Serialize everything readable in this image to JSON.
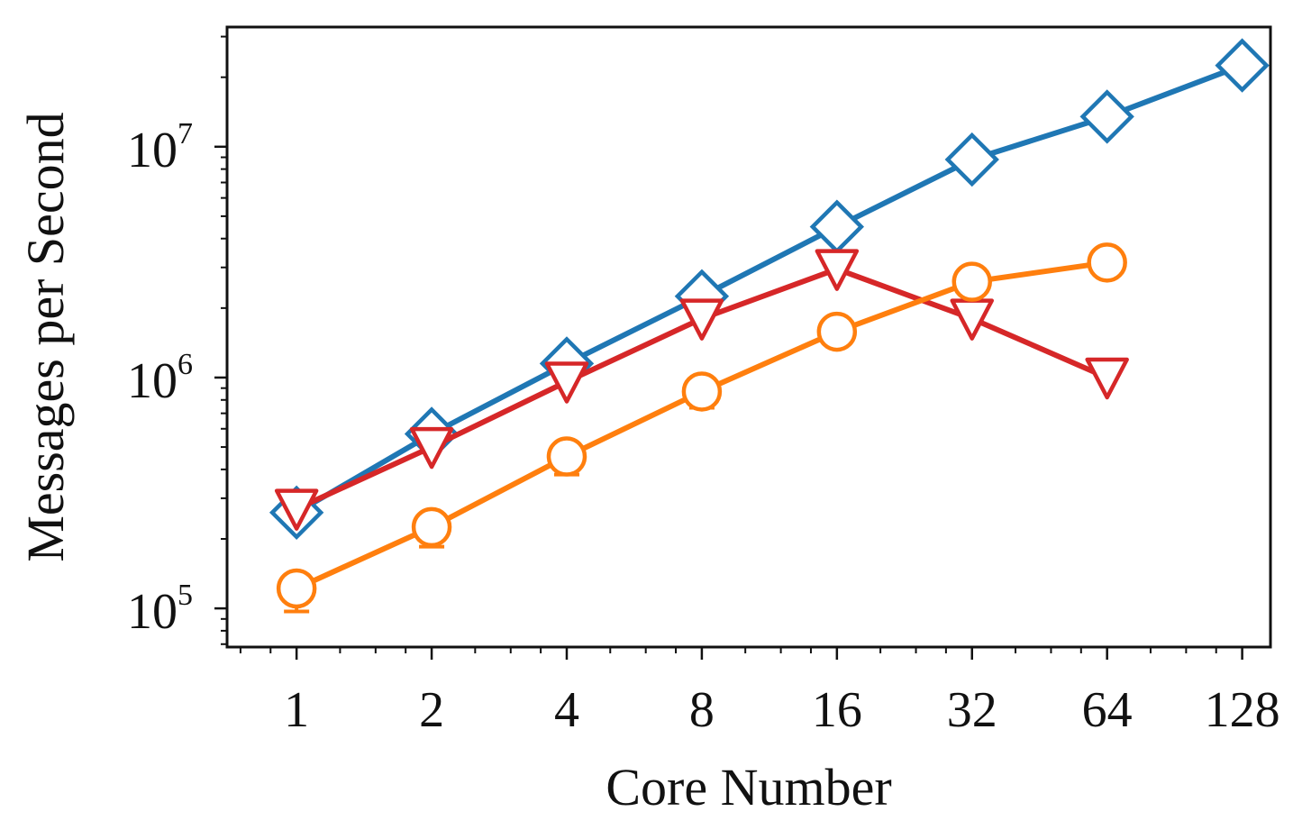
{
  "chart_data": {
    "type": "line",
    "xscale": "log2",
    "yscale": "log10",
    "xlabel": "Core Number",
    "ylabel": "Messages per Second",
    "x": [
      1,
      2,
      4,
      8,
      16,
      32,
      64,
      128
    ],
    "xticklabels": [
      "1",
      "2",
      "4",
      "8",
      "16",
      "32",
      "64",
      "128"
    ],
    "yticks": [
      {
        "value": 100000,
        "base": "10",
        "exp": "5"
      },
      {
        "value": 1000000,
        "base": "10",
        "exp": "6"
      },
      {
        "value": 10000000,
        "base": "10",
        "exp": "7"
      }
    ],
    "ylim": [
      68000,
      33000000
    ],
    "xlim": [
      0.7,
      148
    ],
    "series": [
      {
        "name": "series-diamond",
        "color": "#1f77b4",
        "marker": "diamond",
        "x": [
          1,
          2,
          4,
          8,
          16,
          32,
          64,
          128
        ],
        "values": [
          260000,
          570000,
          1150000,
          2250000,
          4500000,
          8800000,
          13500000,
          22500000
        ],
        "err_low": [
          0,
          0,
          0,
          0,
          0,
          0,
          0,
          0
        ],
        "err_high": [
          0,
          0,
          0,
          0,
          0,
          0,
          0,
          0
        ]
      },
      {
        "name": "series-triangle",
        "color": "#d62728",
        "marker": "triangle-down",
        "x": [
          1,
          2,
          4,
          8,
          16,
          32,
          64
        ],
        "values": [
          270000,
          500000,
          960000,
          1800000,
          2950000,
          1800000,
          1000000
        ],
        "err_low": [
          0,
          0,
          0,
          0,
          0,
          0,
          0
        ],
        "err_high": [
          0,
          0,
          0,
          0,
          0,
          0,
          0
        ]
      },
      {
        "name": "series-circle",
        "color": "#ff7f0e",
        "marker": "circle",
        "x": [
          1,
          2,
          4,
          8,
          16,
          32,
          64
        ],
        "values": [
          122000,
          225000,
          455000,
          870000,
          1580000,
          2600000,
          3150000
        ],
        "err_low": [
          25000,
          40000,
          75000,
          130000,
          190000,
          0,
          0
        ],
        "err_high": [
          0,
          0,
          0,
          0,
          0,
          0,
          0
        ]
      }
    ]
  }
}
